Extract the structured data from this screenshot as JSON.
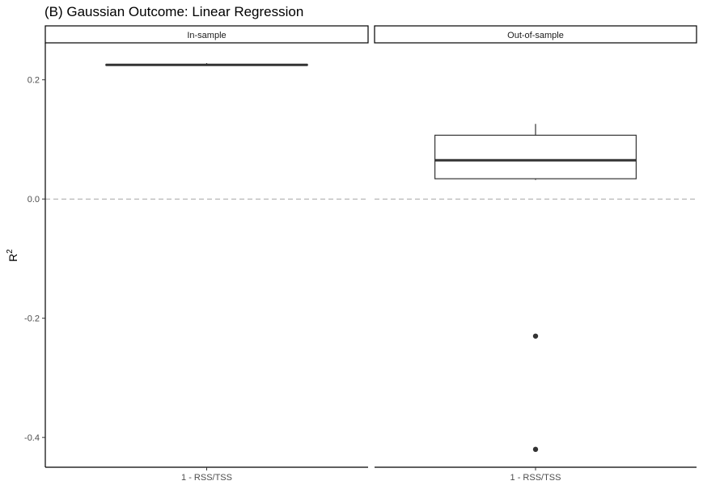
{
  "chart_data": {
    "type": "box",
    "title": "(B) Gaussian Outcome: Linear Regression",
    "ylabel": "R",
    "ylabel_superscript": "2",
    "xlabel": "",
    "ylim": [
      -0.45,
      0.262
    ],
    "yticks": [
      0.2,
      0.0,
      -0.2,
      -0.4
    ],
    "ytick_labels": [
      "0.2",
      "0.0",
      "-0.2",
      "-0.4"
    ],
    "reference_line": {
      "y": 0,
      "style": "dashed",
      "color": "#a6a6a6"
    },
    "grid": false,
    "panels": [
      {
        "strip_label": "In-sample",
        "category": "1 - RSS/TSS",
        "box": {
          "min": 0.224,
          "q1": 0.2245,
          "median": 0.225,
          "q3": 0.2255,
          "max": 0.228
        },
        "outliers": []
      },
      {
        "strip_label": "Out-of-sample",
        "category": "1 - RSS/TSS",
        "box": {
          "min": 0.032,
          "q1": 0.034,
          "median": 0.065,
          "q3": 0.107,
          "max": 0.126
        },
        "outliers": [
          -0.23,
          -0.42
        ]
      }
    ],
    "colors": {
      "box_fill": "#ffffff",
      "box_line": "#333333",
      "point": "#333333",
      "axis": "#000000",
      "strip_border": "#000000",
      "strip_fill": "#ffffff"
    }
  }
}
